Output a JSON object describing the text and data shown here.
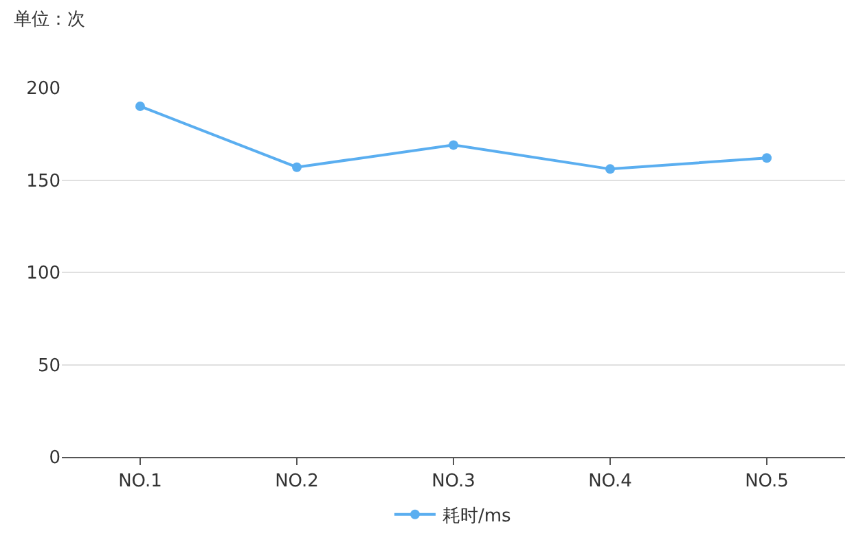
{
  "chart_data": {
    "type": "line",
    "ylabel": "单位：次",
    "categories": [
      "NO.1",
      "NO.2",
      "NO.3",
      "NO.4",
      "NO.5"
    ],
    "series": [
      {
        "name": "耗时/ms",
        "color": "#5aaef0",
        "values": [
          190,
          157,
          169,
          156,
          162
        ]
      }
    ],
    "ylim": [
      0,
      200
    ],
    "yticks": [
      0,
      50,
      100,
      150,
      200
    ],
    "grid": "y",
    "legend": "bottom",
    "marker": "circle",
    "line_style": "solid"
  }
}
